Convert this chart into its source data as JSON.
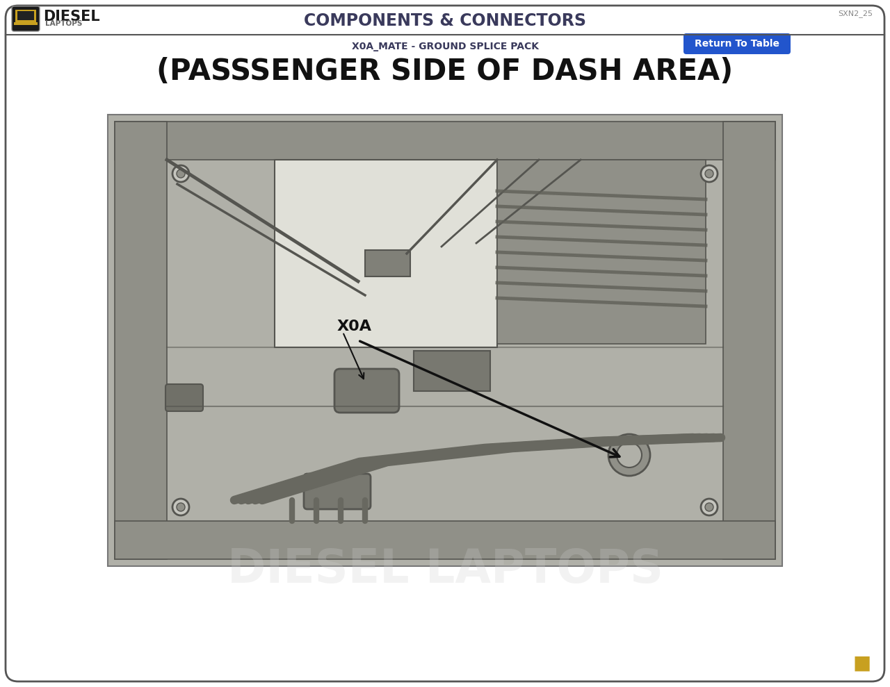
{
  "bg_color": "#f5f5f0",
  "border_color": "#555555",
  "page_bg": "#ffffff",
  "header_title": "COMPONENTS & CONNECTORS",
  "header_title_color": "#3a3a5c",
  "subtitle": "X0A_MATE - GROUND SPLICE PACK",
  "subtitle_color": "#3a3a5c",
  "main_title": "(PASSSENGER SIDE OF DASH AREA)",
  "main_title_color": "#111111",
  "page_id": "SXN2_25",
  "return_btn_text": "Return To Table",
  "return_btn_bg": "#2255cc",
  "return_btn_fg": "#ffffff",
  "logo_text_diesel": "DIESEL",
  "logo_text_laptops": "LAPTOPS",
  "logo_bg": "#1a1a1a",
  "logo_gold": "#c8a020",
  "annotation_label": "X0A",
  "annotation_color": "#111111",
  "image_border_color": "#777777",
  "image_bg": "#b0b0a8"
}
